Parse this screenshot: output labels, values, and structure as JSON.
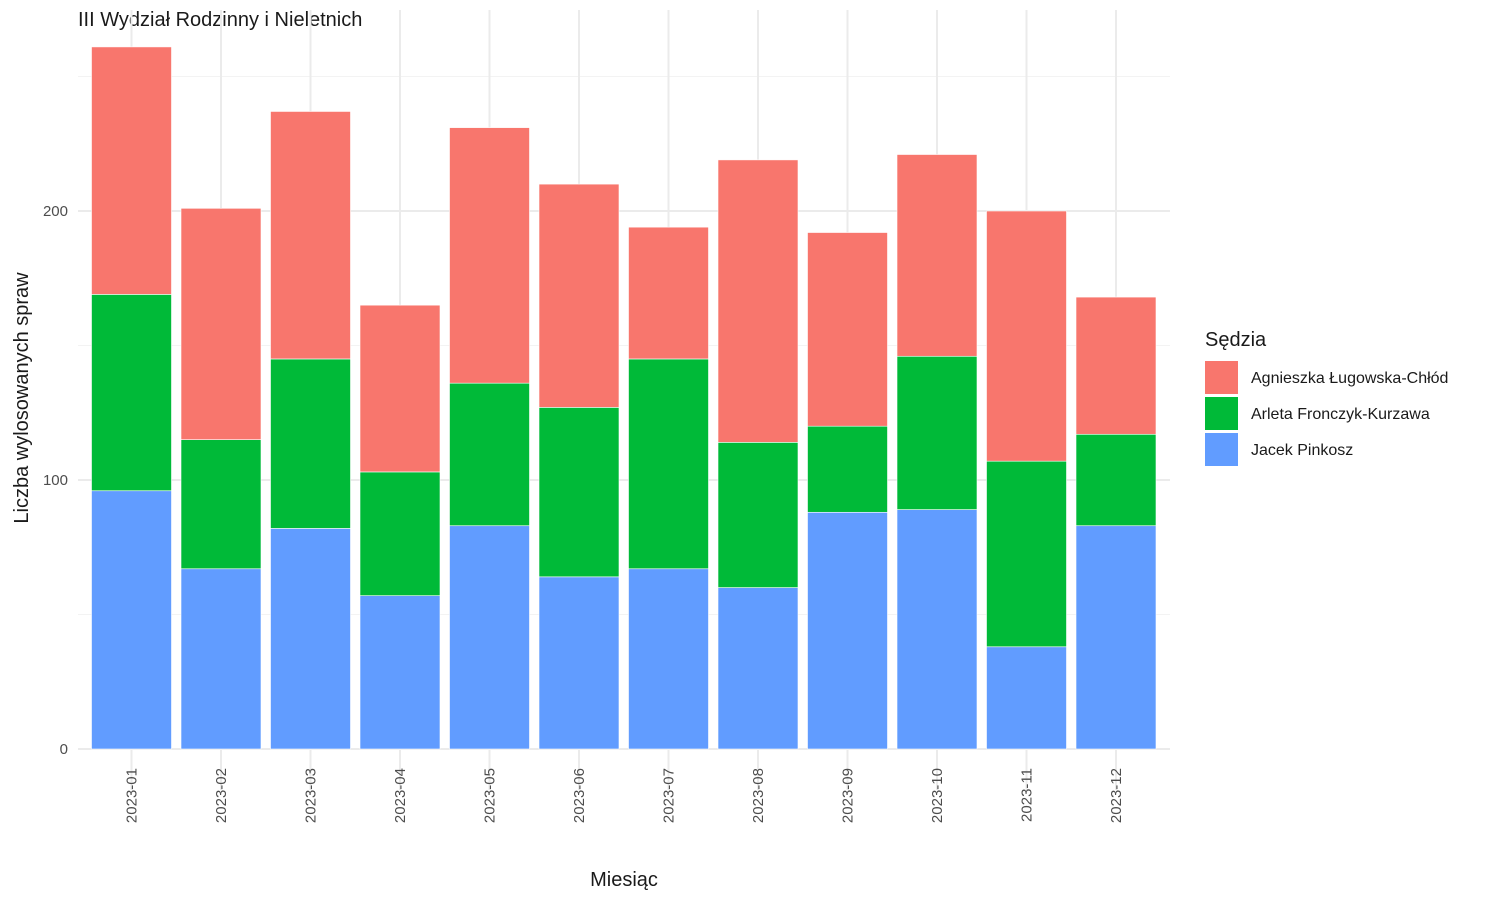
{
  "chart_data": {
    "type": "bar",
    "stacked": true,
    "title": "III Wydział Rodzinny i Nieletnich",
    "xlabel": "Miesiąc",
    "ylabel": "Liczba wylosowanych spraw",
    "ylim": [
      0,
      262
    ],
    "yticks": [
      "0",
      "100",
      "200"
    ],
    "grid": true,
    "legend_title": "Sędzia",
    "legend_position": "right",
    "categories": [
      "2023-01",
      "2023-02",
      "2023-03",
      "2023-04",
      "2023-05",
      "2023-06",
      "2023-07",
      "2023-08",
      "2023-09",
      "2023-10",
      "2023-11",
      "2023-12"
    ],
    "series": [
      {
        "name": "Agnieszka Ługowska-Chłód",
        "color": "#F8766D",
        "values": [
          92,
          86,
          92,
          62,
          95,
          83,
          49,
          105,
          72,
          75,
          93,
          51
        ]
      },
      {
        "name": "Arleta Fronczyk-Kurzawa",
        "color": "#00BA38",
        "values": [
          73,
          48,
          63,
          46,
          53,
          63,
          78,
          54,
          32,
          57,
          69,
          34
        ]
      },
      {
        "name": "Jacek Pinkosz",
        "color": "#619CFF",
        "values": [
          96,
          67,
          82,
          57,
          83,
          64,
          67,
          60,
          88,
          89,
          38,
          83
        ]
      }
    ],
    "stack_order": [
      "Jacek Pinkosz",
      "Arleta Fronczyk-Kurzawa",
      "Agnieszka Ługowska-Chłód"
    ]
  }
}
